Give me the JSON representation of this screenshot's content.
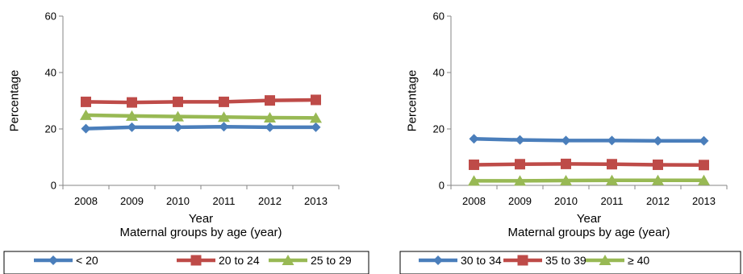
{
  "chart_data": [
    {
      "type": "line",
      "x": [
        "2008",
        "2009",
        "2010",
        "2011",
        "2012",
        "2013"
      ],
      "series": [
        {
          "name": "< 20",
          "values": [
            20.1,
            20.6,
            20.6,
            20.8,
            20.6,
            20.6
          ],
          "color": "#4a7ebb",
          "marker": "diamond"
        },
        {
          "name": "20 to 24",
          "values": [
            29.6,
            29.4,
            29.6,
            29.6,
            30.1,
            30.3
          ],
          "color": "#be4b48",
          "marker": "square"
        },
        {
          "name": "25 to 29",
          "values": [
            24.9,
            24.6,
            24.4,
            24.2,
            24.0,
            23.9
          ],
          "color": "#98b954",
          "marker": "triangle"
        }
      ],
      "ylabel": "Percentage",
      "xlabel": "Year",
      "legend_title": "Maternal groups by age (year)",
      "ylim": [
        0,
        60
      ],
      "yticks": [
        0,
        20,
        40,
        60
      ],
      "grid": false,
      "legend_position": "bottom"
    },
    {
      "type": "line",
      "x": [
        "2008",
        "2009",
        "2010",
        "2011",
        "2012",
        "2013"
      ],
      "series": [
        {
          "name": "30 to 34",
          "values": [
            16.5,
            16.1,
            15.9,
            15.9,
            15.8,
            15.8
          ],
          "color": "#4a7ebb",
          "marker": "diamond"
        },
        {
          "name": "35 to 39",
          "values": [
            7.3,
            7.5,
            7.6,
            7.5,
            7.3,
            7.2
          ],
          "color": "#be4b48",
          "marker": "square"
        },
        {
          "name": "≥ 40",
          "values": [
            1.6,
            1.6,
            1.7,
            1.8,
            1.8,
            1.8
          ],
          "color": "#98b954",
          "marker": "triangle"
        }
      ],
      "ylabel": "Percentage",
      "xlabel": "Year",
      "legend_title": "Maternal groups by age (year)",
      "ylim": [
        0,
        60
      ],
      "yticks": [
        0,
        20,
        40,
        60
      ],
      "grid": false,
      "legend_position": "bottom"
    }
  ]
}
